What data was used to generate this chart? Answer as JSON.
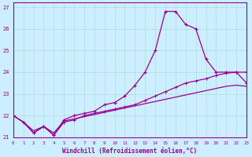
{
  "xlabel": "Windchill (Refroidissement éolien,°C)",
  "ylabel": "",
  "background_color": "#cceeff",
  "line_color": "#990099",
  "grid_color": "#aadddd",
  "x_hours": [
    0,
    1,
    2,
    3,
    4,
    5,
    6,
    7,
    8,
    9,
    10,
    11,
    12,
    13,
    14,
    15,
    16,
    17,
    18,
    19,
    20,
    21,
    22,
    23
  ],
  "series1": [
    22.0,
    21.7,
    21.2,
    21.5,
    21.1,
    21.8,
    22.0,
    22.1,
    22.2,
    22.5,
    22.6,
    22.9,
    23.4,
    24.0,
    25.0,
    26.8,
    26.8,
    26.2,
    26.0,
    24.6,
    24.0,
    24.0,
    24.0,
    23.5
  ],
  "series2": [
    22.0,
    21.7,
    21.2,
    21.5,
    21.1,
    21.7,
    21.8,
    22.0,
    22.1,
    22.2,
    22.3,
    22.4,
    22.5,
    22.7,
    22.9,
    23.1,
    23.3,
    23.5,
    23.6,
    23.7,
    23.85,
    23.95,
    24.0,
    24.0
  ],
  "series3": [
    22.0,
    21.7,
    21.3,
    21.5,
    21.2,
    21.75,
    21.85,
    21.95,
    22.05,
    22.15,
    22.25,
    22.35,
    22.45,
    22.55,
    22.65,
    22.75,
    22.85,
    22.95,
    23.05,
    23.15,
    23.25,
    23.35,
    23.4,
    23.35
  ],
  "ylim": [
    21.0,
    27.2
  ],
  "yticks": [
    21,
    22,
    23,
    24,
    25,
    26,
    27
  ],
  "xlim": [
    0,
    23
  ],
  "xticks": [
    0,
    1,
    2,
    3,
    4,
    5,
    6,
    7,
    8,
    9,
    10,
    11,
    12,
    13,
    14,
    15,
    16,
    17,
    18,
    19,
    20,
    21,
    22,
    23
  ]
}
